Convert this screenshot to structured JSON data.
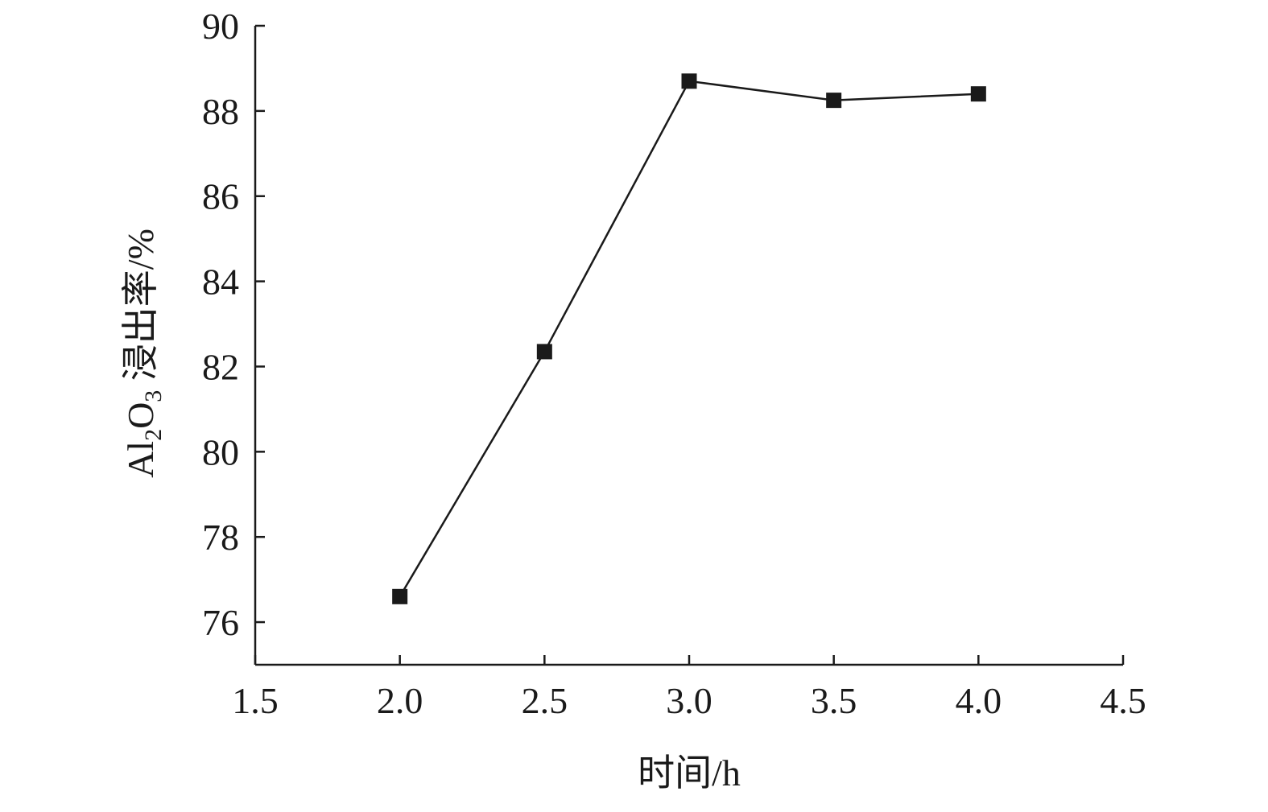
{
  "chart_data": {
    "type": "line",
    "title": "",
    "xlabel": "时间/h",
    "ylabel": {
      "prefix": "Al",
      "sub1": "2",
      "middle": "O",
      "sub2": "3",
      "suffix": " 浸出率/%"
    },
    "xlim": [
      1.5,
      4.5
    ],
    "ylim": [
      75,
      90
    ],
    "x_ticks": [
      1.5,
      2.0,
      2.5,
      3.0,
      3.5,
      4.0,
      4.5
    ],
    "x_tick_labels": [
      "1.5",
      "2.0",
      "2.5",
      "3.0",
      "3.5",
      "4.0",
      "4.5"
    ],
    "y_ticks": [
      76,
      78,
      80,
      82,
      84,
      86,
      88,
      90
    ],
    "y_tick_labels": [
      "76",
      "78",
      "80",
      "82",
      "84",
      "86",
      "88",
      "90"
    ],
    "grid": false,
    "marker": "square",
    "colors": {
      "line": "#1a1a1a",
      "marker": "#1a1a1a"
    },
    "series": [
      {
        "x": [
          2.0,
          2.5,
          3.0,
          3.5,
          4.0
        ],
        "y": [
          76.6,
          82.35,
          88.7,
          88.25,
          88.4
        ]
      }
    ]
  }
}
